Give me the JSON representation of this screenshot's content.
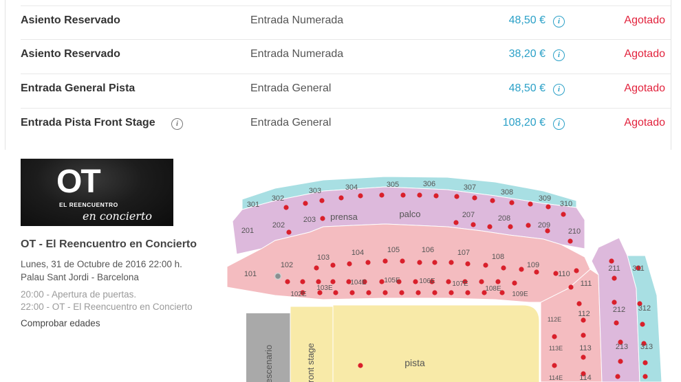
{
  "tickets": [
    {
      "name": "Asiento Reservado",
      "type": "Entrada Numerada",
      "price": "48,50 €",
      "status": "Agotado"
    },
    {
      "name": "Asiento Reservado",
      "type": "Entrada Numerada",
      "price": "38,20 €",
      "status": "Agotado"
    },
    {
      "name": "Entrada General Pista",
      "type": "Entrada General",
      "price": "48,50 €",
      "status": "Agotado"
    },
    {
      "name": "Entrada Pista Front Stage",
      "type": "Entrada General",
      "price": "108,20 €",
      "status": "Agotado"
    }
  ],
  "info_glyph": "i",
  "event": {
    "logo_main": "OT",
    "logo_sub": "EL REENCUENTRO",
    "logo_script": "en concierto",
    "title": "OT - El Reencuentro en Concierto",
    "date": "Lunes, 31 de Octubre de 2016 22:00 h.",
    "venue": "Palau Sant Jordi - Barcelona",
    "schedule": [
      "20:00 - Apertura de puertas.",
      "22:00 - OT - El Reencuentro en Concierto"
    ],
    "age_link": "Comprobar edades"
  },
  "seat_map": {
    "sections_300": [
      "301",
      "302",
      "303",
      "304",
      "305",
      "306",
      "307",
      "308",
      "309",
      "310"
    ],
    "sections_200": [
      "201",
      "202",
      "203",
      "207",
      "208",
      "209",
      "210"
    ],
    "prensa": "prensa",
    "palco": "palco",
    "sections_100": [
      "101",
      "102",
      "103",
      "104",
      "105",
      "106",
      "107",
      "108",
      "109",
      "110"
    ],
    "sections_e": [
      "102E",
      "103E",
      "104E",
      "105E",
      "106E",
      "107E",
      "108E",
      "109E"
    ],
    "right_sections": [
      "111",
      "112E",
      "112",
      "113E",
      "113",
      "114E",
      "114",
      "211",
      "311",
      "212",
      "312",
      "213",
      "313"
    ],
    "escenario": "escenario",
    "front_stage": "front stage",
    "pista": "pista",
    "colors": {
      "tier300": "#a8dfe3",
      "tier200": "#ddb9dc",
      "tier100": "#f4bcc0",
      "pista": "#f8eaa8",
      "stage": "#a9a9a9",
      "dot": "#d9202b"
    }
  }
}
